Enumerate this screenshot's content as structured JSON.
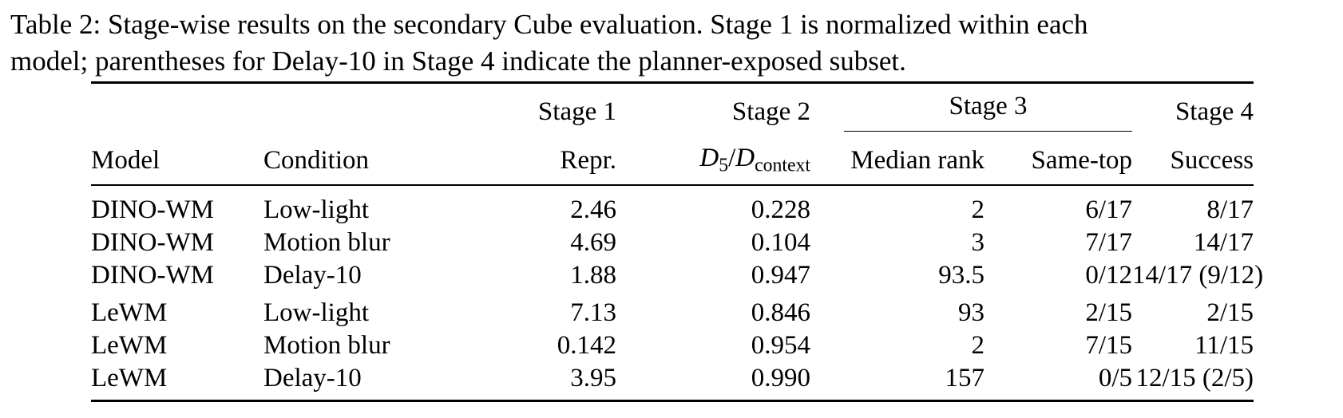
{
  "caption": {
    "line1": "Table 2: Stage-wise results on the secondary Cube evaluation. Stage 1 is normalized within each",
    "line2": "model; parentheses for Delay-10 in Stage 4 indicate the planner-exposed subset."
  },
  "table": {
    "stage_headers": {
      "stage1": "Stage 1",
      "stage2": "Stage 2",
      "stage3": "Stage 3",
      "stage4": "Stage 4"
    },
    "column_headers": {
      "model": "Model",
      "condition": "Condition",
      "repr": "Repr.",
      "ratio_num": "D",
      "ratio_num_sub": "5",
      "ratio_slash": "/",
      "ratio_den": "D",
      "ratio_den_sub": "context",
      "median_rank": "Median rank",
      "same_top": "Same-top",
      "success": "Success"
    },
    "rows": [
      {
        "model": "DINO-WM",
        "condition": "Low-light",
        "repr": "2.46",
        "ratio": "0.228",
        "median_rank": "2",
        "same_top": "6/17",
        "success": "8/17"
      },
      {
        "model": "DINO-WM",
        "condition": "Motion blur",
        "repr": "4.69",
        "ratio": "0.104",
        "median_rank": "3",
        "same_top": "7/17",
        "success": "14/17"
      },
      {
        "model": "DINO-WM",
        "condition": "Delay-10",
        "repr": "1.88",
        "ratio": "0.947",
        "median_rank": "93.5",
        "same_top": "0/12",
        "success": "14/17 (9/12)"
      },
      {
        "model": "LeWM",
        "condition": "Low-light",
        "repr": "7.13",
        "ratio": "0.846",
        "median_rank": "93",
        "same_top": "2/15",
        "success": "2/15"
      },
      {
        "model": "LeWM",
        "condition": "Motion blur",
        "repr": "0.142",
        "ratio": "0.954",
        "median_rank": "2",
        "same_top": "7/15",
        "success": "11/15"
      },
      {
        "model": "LeWM",
        "condition": "Delay-10",
        "repr": "3.95",
        "ratio": "0.990",
        "median_rank": "157",
        "same_top": "0/5",
        "success": "12/15 (2/5)"
      }
    ]
  }
}
